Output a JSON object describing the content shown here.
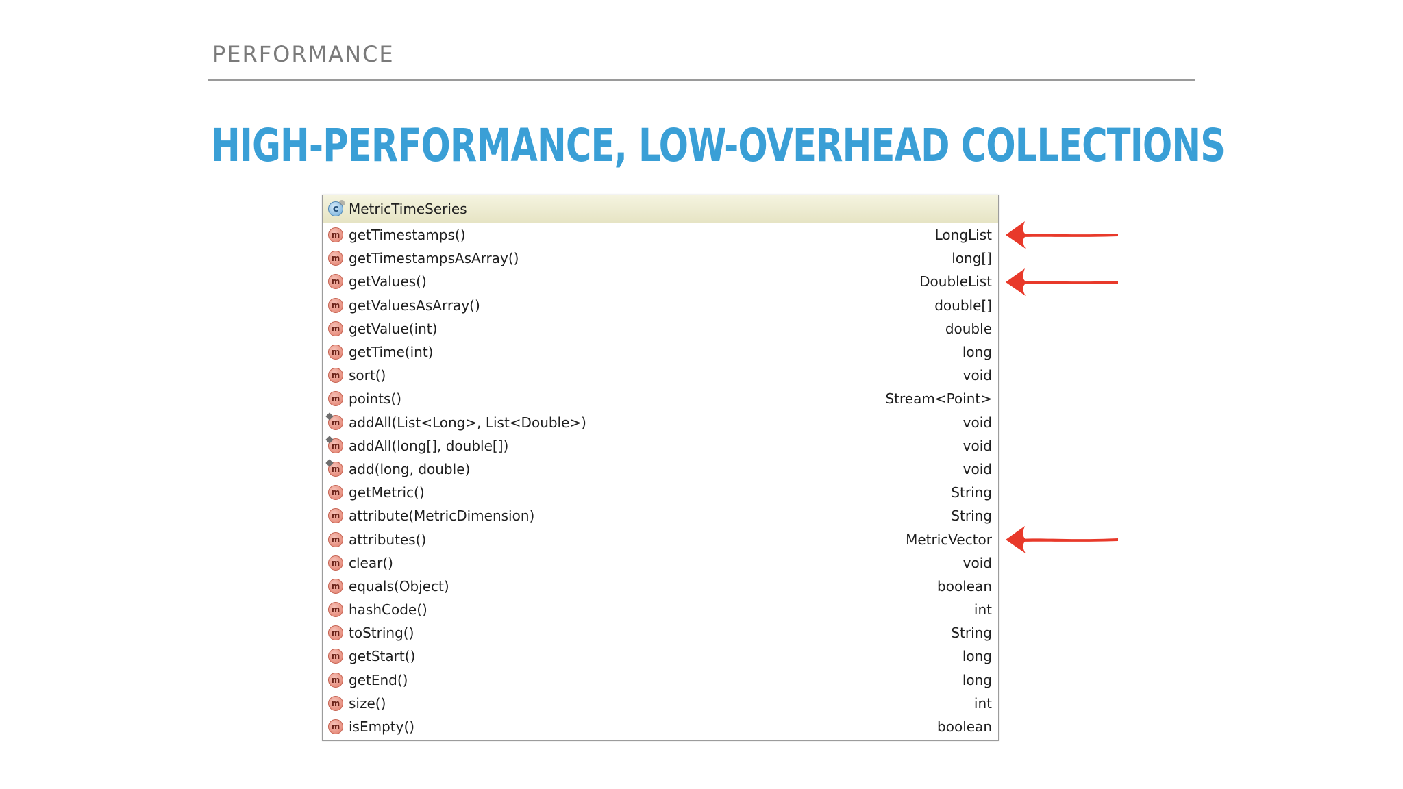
{
  "slide": {
    "section_label": "PERFORMANCE",
    "title": "HIGH-PERFORMANCE, LOW-OVERHEAD COLLECTIONS"
  },
  "popup": {
    "class_icon": "class-icon",
    "class_icon_glyph": "c",
    "class_name": "MetricTimeSeries",
    "method_icon_glyph": "m",
    "rows": [
      {
        "method": "getTimestamps()",
        "type": "LongList",
        "static": false,
        "arrow": true
      },
      {
        "method": "getTimestampsAsArray()",
        "type": "long[]",
        "static": false,
        "arrow": false
      },
      {
        "method": "getValues()",
        "type": "DoubleList",
        "static": false,
        "arrow": true
      },
      {
        "method": "getValuesAsArray()",
        "type": "double[]",
        "static": false,
        "arrow": false
      },
      {
        "method": "getValue(int)",
        "type": "double",
        "static": false,
        "arrow": false
      },
      {
        "method": "getTime(int)",
        "type": "long",
        "static": false,
        "arrow": false
      },
      {
        "method": "sort()",
        "type": "void",
        "static": false,
        "arrow": false
      },
      {
        "method": "points()",
        "type": "Stream<Point>",
        "static": false,
        "arrow": false
      },
      {
        "method": "addAll(List<Long>, List<Double>)",
        "type": "void",
        "static": true,
        "arrow": false
      },
      {
        "method": "addAll(long[], double[])",
        "type": "void",
        "static": true,
        "arrow": false
      },
      {
        "method": "add(long, double)",
        "type": "void",
        "static": true,
        "arrow": false
      },
      {
        "method": "getMetric()",
        "type": "String",
        "static": false,
        "arrow": false
      },
      {
        "method": "attribute(MetricDimension)",
        "type": "String",
        "static": false,
        "arrow": false
      },
      {
        "method": "attributes()",
        "type": "MetricVector",
        "static": false,
        "arrow": true
      },
      {
        "method": "clear()",
        "type": "void",
        "static": false,
        "arrow": false
      },
      {
        "method": "equals(Object)",
        "type": "boolean",
        "static": false,
        "arrow": false
      },
      {
        "method": "hashCode()",
        "type": "int",
        "static": false,
        "arrow": false
      },
      {
        "method": "toString()",
        "type": "String",
        "static": false,
        "arrow": false
      },
      {
        "method": "getStart()",
        "type": "long",
        "static": false,
        "arrow": false
      },
      {
        "method": "getEnd()",
        "type": "long",
        "static": false,
        "arrow": false
      },
      {
        "method": "size()",
        "type": "int",
        "static": false,
        "arrow": false
      },
      {
        "method": "isEmpty()",
        "type": "boolean",
        "static": false,
        "arrow": false
      }
    ]
  },
  "colors": {
    "title": "#3a9fd6",
    "section_label": "#7a7a7a",
    "arrow": "#e8392a"
  }
}
